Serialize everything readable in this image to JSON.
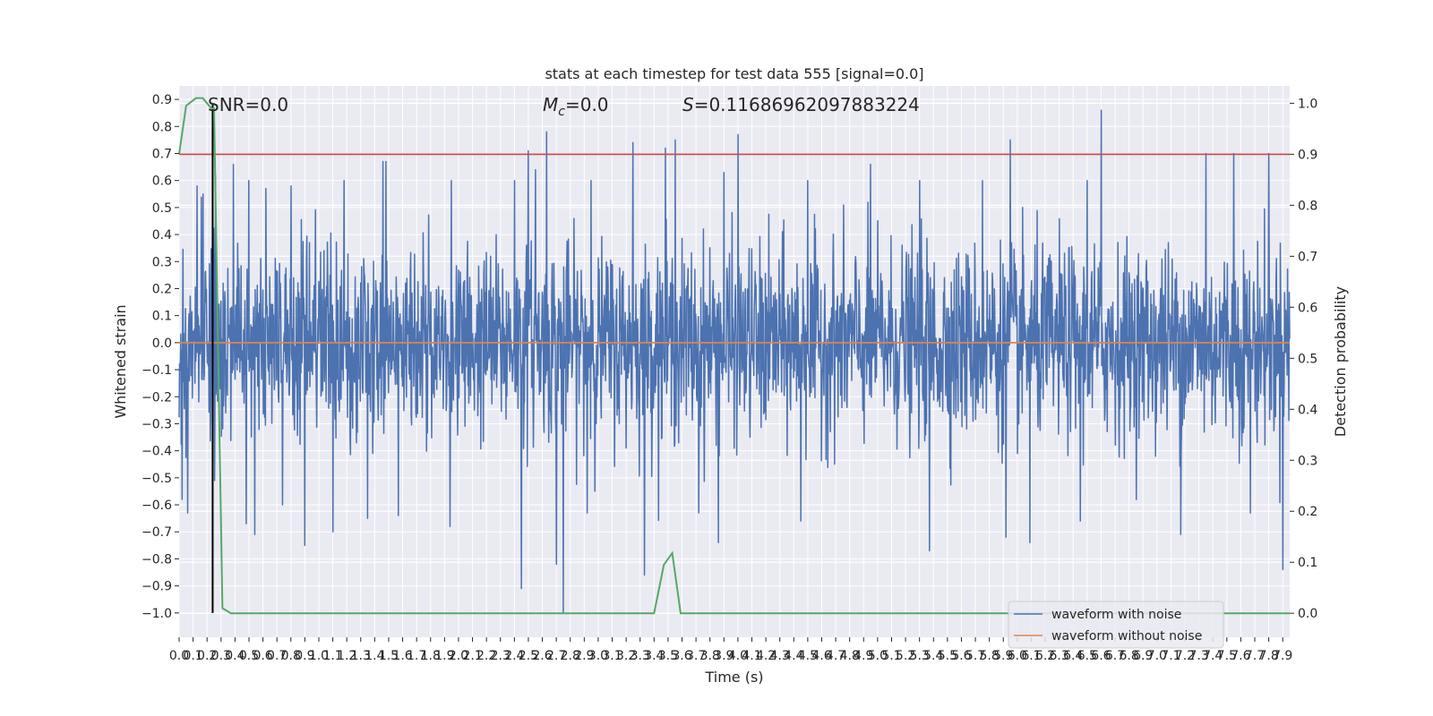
{
  "chart_data": {
    "type": "line",
    "title": "stats at each timestep for test data 555 [signal=0.0]",
    "xlabel": "Time (s)",
    "ylabel": "Whitened strain",
    "y2label": "Detection probability",
    "xlim": [
      0,
      7.95
    ],
    "ylim": [
      -1.09,
      0.95
    ],
    "y2lim": [
      -0.047,
      1.034
    ],
    "xticks": [
      "0.0",
      "0.1",
      "0.2",
      "0.3",
      "0.4",
      "0.5",
      "0.6",
      "0.7",
      "0.8",
      "0.9",
      "1.0",
      "1.1",
      "1.2",
      "1.3",
      "1.4",
      "1.5",
      "1.6",
      "1.7",
      "1.8",
      "1.9",
      "2.0",
      "2.1",
      "2.2",
      "2.3",
      "2.4",
      "2.5",
      "2.6",
      "2.7",
      "2.8",
      "2.9",
      "3.0",
      "3.1",
      "3.2",
      "3.3",
      "3.4",
      "3.5",
      "3.6",
      "3.7",
      "3.8",
      "3.9",
      "4.0",
      "4.1",
      "4.2",
      "4.3",
      "4.4",
      "4.5",
      "4.6",
      "4.7",
      "4.8",
      "4.9",
      "5.0",
      "5.1",
      "5.2",
      "5.3",
      "5.4",
      "5.5",
      "5.6",
      "5.7",
      "5.8",
      "5.9",
      "6.0",
      "6.1",
      "6.2",
      "6.3",
      "6.4",
      "6.5",
      "6.6",
      "6.7",
      "6.8",
      "6.9",
      "7.0",
      "7.1",
      "7.2",
      "7.3",
      "7.4",
      "7.5",
      "7.6",
      "7.7",
      "7.8",
      "7.9"
    ],
    "yticks": [
      "0.9",
      "0.8",
      "0.7",
      "0.6",
      "0.5",
      "0.4",
      "0.3",
      "0.2",
      "0.1",
      "0.0",
      "−0.1",
      "−0.2",
      "−0.3",
      "−0.4",
      "−0.5",
      "−0.6",
      "−0.7",
      "−0.8",
      "−0.9",
      "−1.0"
    ],
    "y2ticks": [
      "1.0",
      "0.9",
      "0.8",
      "0.7",
      "0.6",
      "0.5",
      "0.4",
      "0.3",
      "0.2",
      "0.1",
      "0.0"
    ],
    "annotations": {
      "snr": "SNR=0.0",
      "mc_symbol": "M",
      "mc_sub": "c",
      "mc_value": "=0.0",
      "s_symbol": "S",
      "s_value": "=0.11686962097883224"
    },
    "series": [
      {
        "name": "waveform with noise",
        "color": "#4c72b0",
        "envelope": {
          "typical_amplitude": 0.28,
          "upper_max": 0.86,
          "lower_min": -1.0
        },
        "spikes_upper": [
          [
            0.06,
            0.6
          ],
          [
            0.13,
            0.58
          ],
          [
            0.17,
            0.55
          ],
          [
            0.26,
            0.62
          ],
          [
            0.39,
            0.66
          ],
          [
            0.5,
            0.6
          ],
          [
            0.62,
            0.57
          ],
          [
            0.8,
            0.58
          ],
          [
            1.18,
            0.6
          ],
          [
            1.46,
            0.67
          ],
          [
            1.48,
            0.67
          ],
          [
            1.95,
            0.6
          ],
          [
            2.4,
            0.6
          ],
          [
            2.5,
            0.71
          ],
          [
            2.55,
            0.64
          ],
          [
            2.63,
            0.78
          ],
          [
            2.95,
            0.6
          ],
          [
            3.25,
            0.74
          ],
          [
            3.48,
            0.72
          ],
          [
            3.55,
            0.75
          ],
          [
            3.9,
            0.63
          ],
          [
            4.0,
            0.77
          ],
          [
            4.5,
            0.6
          ],
          [
            4.95,
            0.66
          ],
          [
            5.3,
            0.6
          ],
          [
            5.75,
            0.6
          ],
          [
            5.95,
            0.75
          ],
          [
            6.5,
            0.6
          ],
          [
            6.6,
            0.86
          ],
          [
            7.35,
            0.7
          ],
          [
            7.55,
            0.7
          ],
          [
            7.8,
            0.7
          ]
        ],
        "spikes_lower": [
          [
            0.02,
            -0.58
          ],
          [
            0.06,
            -0.63
          ],
          [
            0.24,
            -0.3
          ],
          [
            0.48,
            -0.67
          ],
          [
            0.54,
            -0.71
          ],
          [
            0.74,
            -0.6
          ],
          [
            0.9,
            -0.75
          ],
          [
            1.1,
            -0.7
          ],
          [
            1.35,
            -0.65
          ],
          [
            1.57,
            -0.64
          ],
          [
            1.94,
            -0.68
          ],
          [
            2.45,
            -0.91
          ],
          [
            2.7,
            -0.82
          ],
          [
            2.75,
            -1.0
          ],
          [
            2.92,
            -0.63
          ],
          [
            3.33,
            -0.86
          ],
          [
            3.72,
            -0.63
          ],
          [
            3.86,
            -0.74
          ],
          [
            4.45,
            -0.66
          ],
          [
            5.37,
            -0.77
          ],
          [
            5.92,
            -0.72
          ],
          [
            6.09,
            -0.74
          ],
          [
            6.45,
            -0.66
          ],
          [
            7.17,
            -0.71
          ],
          [
            7.67,
            -0.63
          ],
          [
            7.9,
            -0.84
          ]
        ]
      },
      {
        "name": "waveform without noise",
        "color": "#dd8452",
        "x": [
          0,
          7.95
        ],
        "y": [
          0.0,
          0.0
        ]
      }
    ],
    "detection_probability": {
      "color": "#55a868",
      "x": [
        0.0,
        0.05,
        0.12,
        0.17,
        0.23,
        0.25,
        0.31,
        0.37,
        3.4,
        3.47,
        3.53,
        3.59,
        7.95
      ],
      "y": [
        0.9,
        0.995,
        1.01,
        1.01,
        0.99,
        0.99,
        0.01,
        0.0,
        0.0,
        0.095,
        0.118,
        0.0,
        0.0
      ]
    },
    "threshold": {
      "value": 0.9,
      "axis": "y2",
      "color": "#c44e52"
    },
    "vertical_marker": {
      "x": 0.24,
      "ymin": -1.0,
      "ymax": 0.86,
      "color": "#000000"
    },
    "grid": true,
    "legend": {
      "position": "lower right",
      "entries": [
        "waveform with noise",
        "waveform without noise"
      ]
    }
  }
}
